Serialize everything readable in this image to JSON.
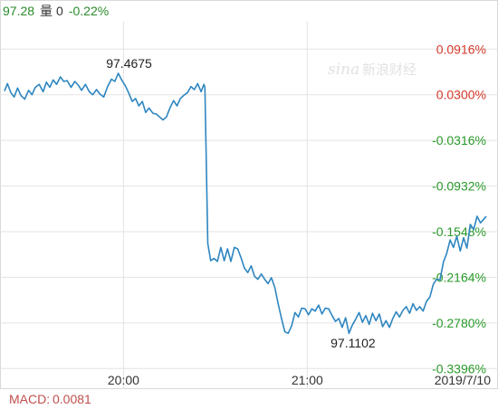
{
  "header": {
    "price": "97.28",
    "volume_label": "量",
    "volume": "0",
    "change": "-0.22%"
  },
  "watermark": {
    "brand_latin": "sina",
    "brand_cn": "新浪财经"
  },
  "chart_data": {
    "type": "line",
    "reference_price": 97.3883,
    "y_axis_labels": [
      "0.0916%",
      "0.0300%",
      "-0.0316%",
      "-0.0932%",
      "-0.1548%",
      "-0.2164%",
      "-0.2780%",
      "-0.3396%"
    ],
    "y_axis_values": [
      0.0916,
      0.03,
      -0.0316,
      -0.0932,
      -0.1548,
      -0.2164,
      -0.278,
      -0.3396
    ],
    "x_ticks": [
      {
        "label": "20:00",
        "position": 0.248
      },
      {
        "label": "21:00",
        "position": 0.617
      },
      {
        "label": "2019/7/10",
        "position": 0.994
      }
    ],
    "annotations": [
      {
        "label": "97.4675",
        "value": 97.4675
      },
      {
        "label": "97.1102",
        "value": 97.1102
      }
    ],
    "series": [
      {
        "color": "#2e86c1",
        "points": [
          [
            0,
            0.035
          ],
          [
            0.6,
            0.045
          ],
          [
            1.3,
            0.033
          ],
          [
            2.0,
            0.027
          ],
          [
            2.7,
            0.039
          ],
          [
            3.4,
            0.029
          ],
          [
            4.2,
            0.024
          ],
          [
            5.0,
            0.036
          ],
          [
            5.7,
            0.03
          ],
          [
            6.4,
            0.04
          ],
          [
            7.2,
            0.044
          ],
          [
            8.0,
            0.034
          ],
          [
            8.7,
            0.047
          ],
          [
            9.4,
            0.04
          ],
          [
            10.1,
            0.05
          ],
          [
            10.8,
            0.044
          ],
          [
            11.6,
            0.054
          ],
          [
            12.3,
            0.048
          ],
          [
            13.0,
            0.049
          ],
          [
            13.8,
            0.04
          ],
          [
            14.6,
            0.048
          ],
          [
            15.3,
            0.043
          ],
          [
            16.0,
            0.036
          ],
          [
            16.8,
            0.044
          ],
          [
            17.6,
            0.034
          ],
          [
            18.3,
            0.03
          ],
          [
            19.1,
            0.037
          ],
          [
            19.8,
            0.031
          ],
          [
            20.6,
            0.027
          ],
          [
            21.4,
            0.041
          ],
          [
            22.2,
            0.051
          ],
          [
            22.9,
            0.048
          ],
          [
            23.6,
            0.059
          ],
          [
            24.4,
            0.049
          ],
          [
            25.1,
            0.042
          ],
          [
            25.8,
            0.032
          ],
          [
            26.5,
            0.021
          ],
          [
            27.2,
            0.025
          ],
          [
            27.9,
            0.015
          ],
          [
            28.6,
            0.021
          ],
          [
            29.3,
            0.006
          ],
          [
            30.0,
            0.012
          ],
          [
            30.8,
            0.005
          ],
          [
            31.5,
            0.004
          ],
          [
            32.2,
            0.0
          ],
          [
            32.9,
            -0.004
          ],
          [
            33.6,
            0.0
          ],
          [
            34.4,
            0.013
          ],
          [
            35.1,
            0.022
          ],
          [
            35.8,
            0.015
          ],
          [
            36.5,
            0.025
          ],
          [
            37.2,
            0.029
          ],
          [
            38.0,
            0.033
          ],
          [
            38.7,
            0.041
          ],
          [
            39.4,
            0.037
          ],
          [
            40.1,
            0.045
          ],
          [
            40.8,
            0.034
          ],
          [
            41.4,
            0.044
          ],
          [
            41.6,
            0.04
          ],
          [
            42.2,
            -0.171
          ],
          [
            42.8,
            -0.194
          ],
          [
            43.5,
            -0.191
          ],
          [
            44.2,
            -0.195
          ],
          [
            44.9,
            -0.176
          ],
          [
            45.6,
            -0.194
          ],
          [
            46.3,
            -0.178
          ],
          [
            47.0,
            -0.195
          ],
          [
            47.7,
            -0.176
          ],
          [
            48.4,
            -0.178
          ],
          [
            49.1,
            -0.19
          ],
          [
            49.8,
            -0.204
          ],
          [
            50.5,
            -0.21
          ],
          [
            51.2,
            -0.201
          ],
          [
            51.9,
            -0.215
          ],
          [
            52.6,
            -0.219
          ],
          [
            53.3,
            -0.212
          ],
          [
            54.0,
            -0.219
          ],
          [
            54.7,
            -0.225
          ],
          [
            55.4,
            -0.217
          ],
          [
            56.1,
            -0.23
          ],
          [
            56.8,
            -0.252
          ],
          [
            57.5,
            -0.272
          ],
          [
            58.2,
            -0.29
          ],
          [
            58.9,
            -0.292
          ],
          [
            59.6,
            -0.282
          ],
          [
            60.3,
            -0.264
          ],
          [
            61.0,
            -0.27
          ],
          [
            61.7,
            -0.258
          ],
          [
            62.4,
            -0.259
          ],
          [
            63.1,
            -0.267
          ],
          [
            63.8,
            -0.259
          ],
          [
            64.5,
            -0.262
          ],
          [
            65.2,
            -0.254
          ],
          [
            65.9,
            -0.266
          ],
          [
            66.6,
            -0.258
          ],
          [
            67.3,
            -0.259
          ],
          [
            68.0,
            -0.268
          ],
          [
            68.7,
            -0.276
          ],
          [
            69.4,
            -0.272
          ],
          [
            70.1,
            -0.284
          ],
          [
            70.8,
            -0.271
          ],
          [
            71.5,
            -0.292
          ],
          [
            72.2,
            -0.281
          ],
          [
            72.9,
            -0.273
          ],
          [
            73.6,
            -0.264
          ],
          [
            74.3,
            -0.277
          ],
          [
            75.0,
            -0.268
          ],
          [
            75.7,
            -0.28
          ],
          [
            76.4,
            -0.265
          ],
          [
            77.1,
            -0.275
          ],
          [
            77.8,
            -0.266
          ],
          [
            78.5,
            -0.283
          ],
          [
            79.2,
            -0.275
          ],
          [
            79.9,
            -0.284
          ],
          [
            80.6,
            -0.272
          ],
          [
            81.3,
            -0.263
          ],
          [
            82.0,
            -0.27
          ],
          [
            82.7,
            -0.261
          ],
          [
            83.4,
            -0.256
          ],
          [
            84.1,
            -0.265
          ],
          [
            84.8,
            -0.252
          ],
          [
            85.5,
            -0.261
          ],
          [
            86.2,
            -0.256
          ],
          [
            86.9,
            -0.262
          ],
          [
            87.6,
            -0.249
          ],
          [
            88.3,
            -0.243
          ],
          [
            89.0,
            -0.226
          ],
          [
            89.7,
            -0.219
          ],
          [
            90.4,
            -0.22
          ],
          [
            91.1,
            -0.196
          ],
          [
            91.8,
            -0.184
          ],
          [
            92.5,
            -0.166
          ],
          [
            93.2,
            -0.176
          ],
          [
            93.9,
            -0.161
          ],
          [
            94.6,
            -0.181
          ],
          [
            95.3,
            -0.163
          ],
          [
            96.0,
            -0.177
          ],
          [
            96.7,
            -0.145
          ],
          [
            97.4,
            -0.152
          ],
          [
            98.1,
            -0.134
          ],
          [
            98.8,
            -0.143
          ],
          [
            99.5,
            -0.138
          ],
          [
            100,
            -0.134
          ]
        ]
      }
    ]
  },
  "footer": {
    "macd_label": "MACD:",
    "macd_value": "0.0081"
  }
}
